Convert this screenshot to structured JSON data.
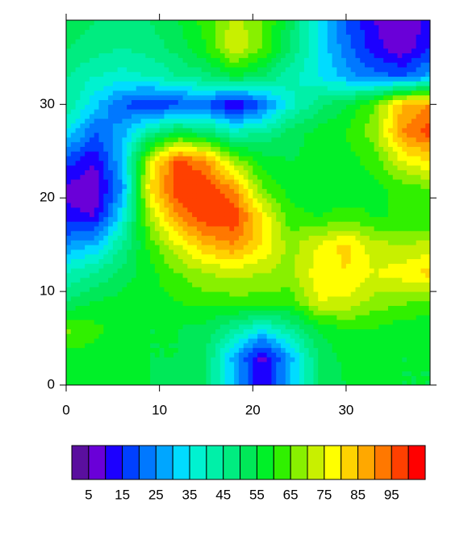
{
  "chart_data": {
    "type": "contour",
    "x": [
      0,
      3,
      6,
      9,
      12,
      15,
      18,
      21,
      24,
      27,
      30,
      33,
      36,
      39
    ],
    "y": [
      0,
      3,
      6,
      9,
      12,
      15,
      18,
      21,
      24,
      27,
      30,
      33,
      36,
      39
    ],
    "z": [
      [
        55,
        55,
        55,
        55,
        54,
        50,
        30,
        10,
        30,
        50,
        55,
        55,
        55,
        55
      ],
      [
        58,
        57,
        56,
        55,
        55,
        50,
        28,
        8,
        28,
        50,
        57,
        57,
        55,
        55
      ],
      [
        66,
        62,
        57,
        55,
        55,
        53,
        45,
        35,
        45,
        55,
        60,
        60,
        57,
        55
      ],
      [
        50,
        55,
        57,
        58,
        60,
        62,
        63,
        63,
        62,
        75,
        74,
        68,
        66,
        65
      ],
      [
        40,
        45,
        52,
        58,
        65,
        70,
        72,
        70,
        68,
        78,
        80,
        75,
        78,
        82
      ],
      [
        25,
        30,
        45,
        62,
        75,
        85,
        90,
        80,
        68,
        75,
        82,
        72,
        70,
        72
      ],
      [
        12,
        10,
        35,
        70,
        90,
        99,
        99,
        80,
        62,
        60,
        62,
        60,
        60,
        60
      ],
      [
        8,
        5,
        25,
        80,
        100,
        100,
        90,
        65,
        58,
        57,
        57,
        58,
        62,
        65
      ],
      [
        18,
        10,
        30,
        75,
        97,
        90,
        68,
        58,
        55,
        57,
        58,
        62,
        75,
        80
      ],
      [
        35,
        20,
        28,
        45,
        55,
        50,
        42,
        45,
        52,
        57,
        60,
        68,
        90,
        98
      ],
      [
        45,
        32,
        20,
        15,
        18,
        20,
        8,
        20,
        38,
        48,
        55,
        65,
        85,
        90
      ],
      [
        45,
        40,
        38,
        40,
        45,
        48,
        55,
        50,
        42,
        35,
        28,
        22,
        20,
        28
      ],
      [
        50,
        47,
        45,
        47,
        52,
        60,
        75,
        65,
        50,
        35,
        22,
        12,
        6,
        15
      ],
      [
        55,
        50,
        47,
        50,
        55,
        62,
        72,
        66,
        52,
        35,
        20,
        10,
        5,
        12
      ]
    ],
    "xlim": [
      0,
      39
    ],
    "ylim": [
      0,
      39
    ],
    "xticks": [
      0,
      10,
      20,
      30
    ],
    "yticks": [
      0,
      10,
      20,
      30
    ],
    "levels": [
      5,
      10,
      15,
      20,
      25,
      30,
      35,
      40,
      45,
      50,
      55,
      60,
      65,
      70,
      75,
      80,
      85,
      90,
      95,
      100
    ],
    "colors": [
      "#5a0f9e",
      "#6a00d8",
      "#1c00ff",
      "#0040ff",
      "#0078ff",
      "#00a6ff",
      "#00dcff",
      "#00f2d0",
      "#00f0a8",
      "#00ec80",
      "#00e858",
      "#00f028",
      "#30f000",
      "#88f000",
      "#c8f000",
      "#ffff00",
      "#ffd200",
      "#ffa800",
      "#ff7800",
      "#ff4000",
      "#ff0000"
    ],
    "colorbar_ticks": [
      5,
      15,
      25,
      35,
      45,
      55,
      65,
      75,
      85,
      95
    ]
  }
}
